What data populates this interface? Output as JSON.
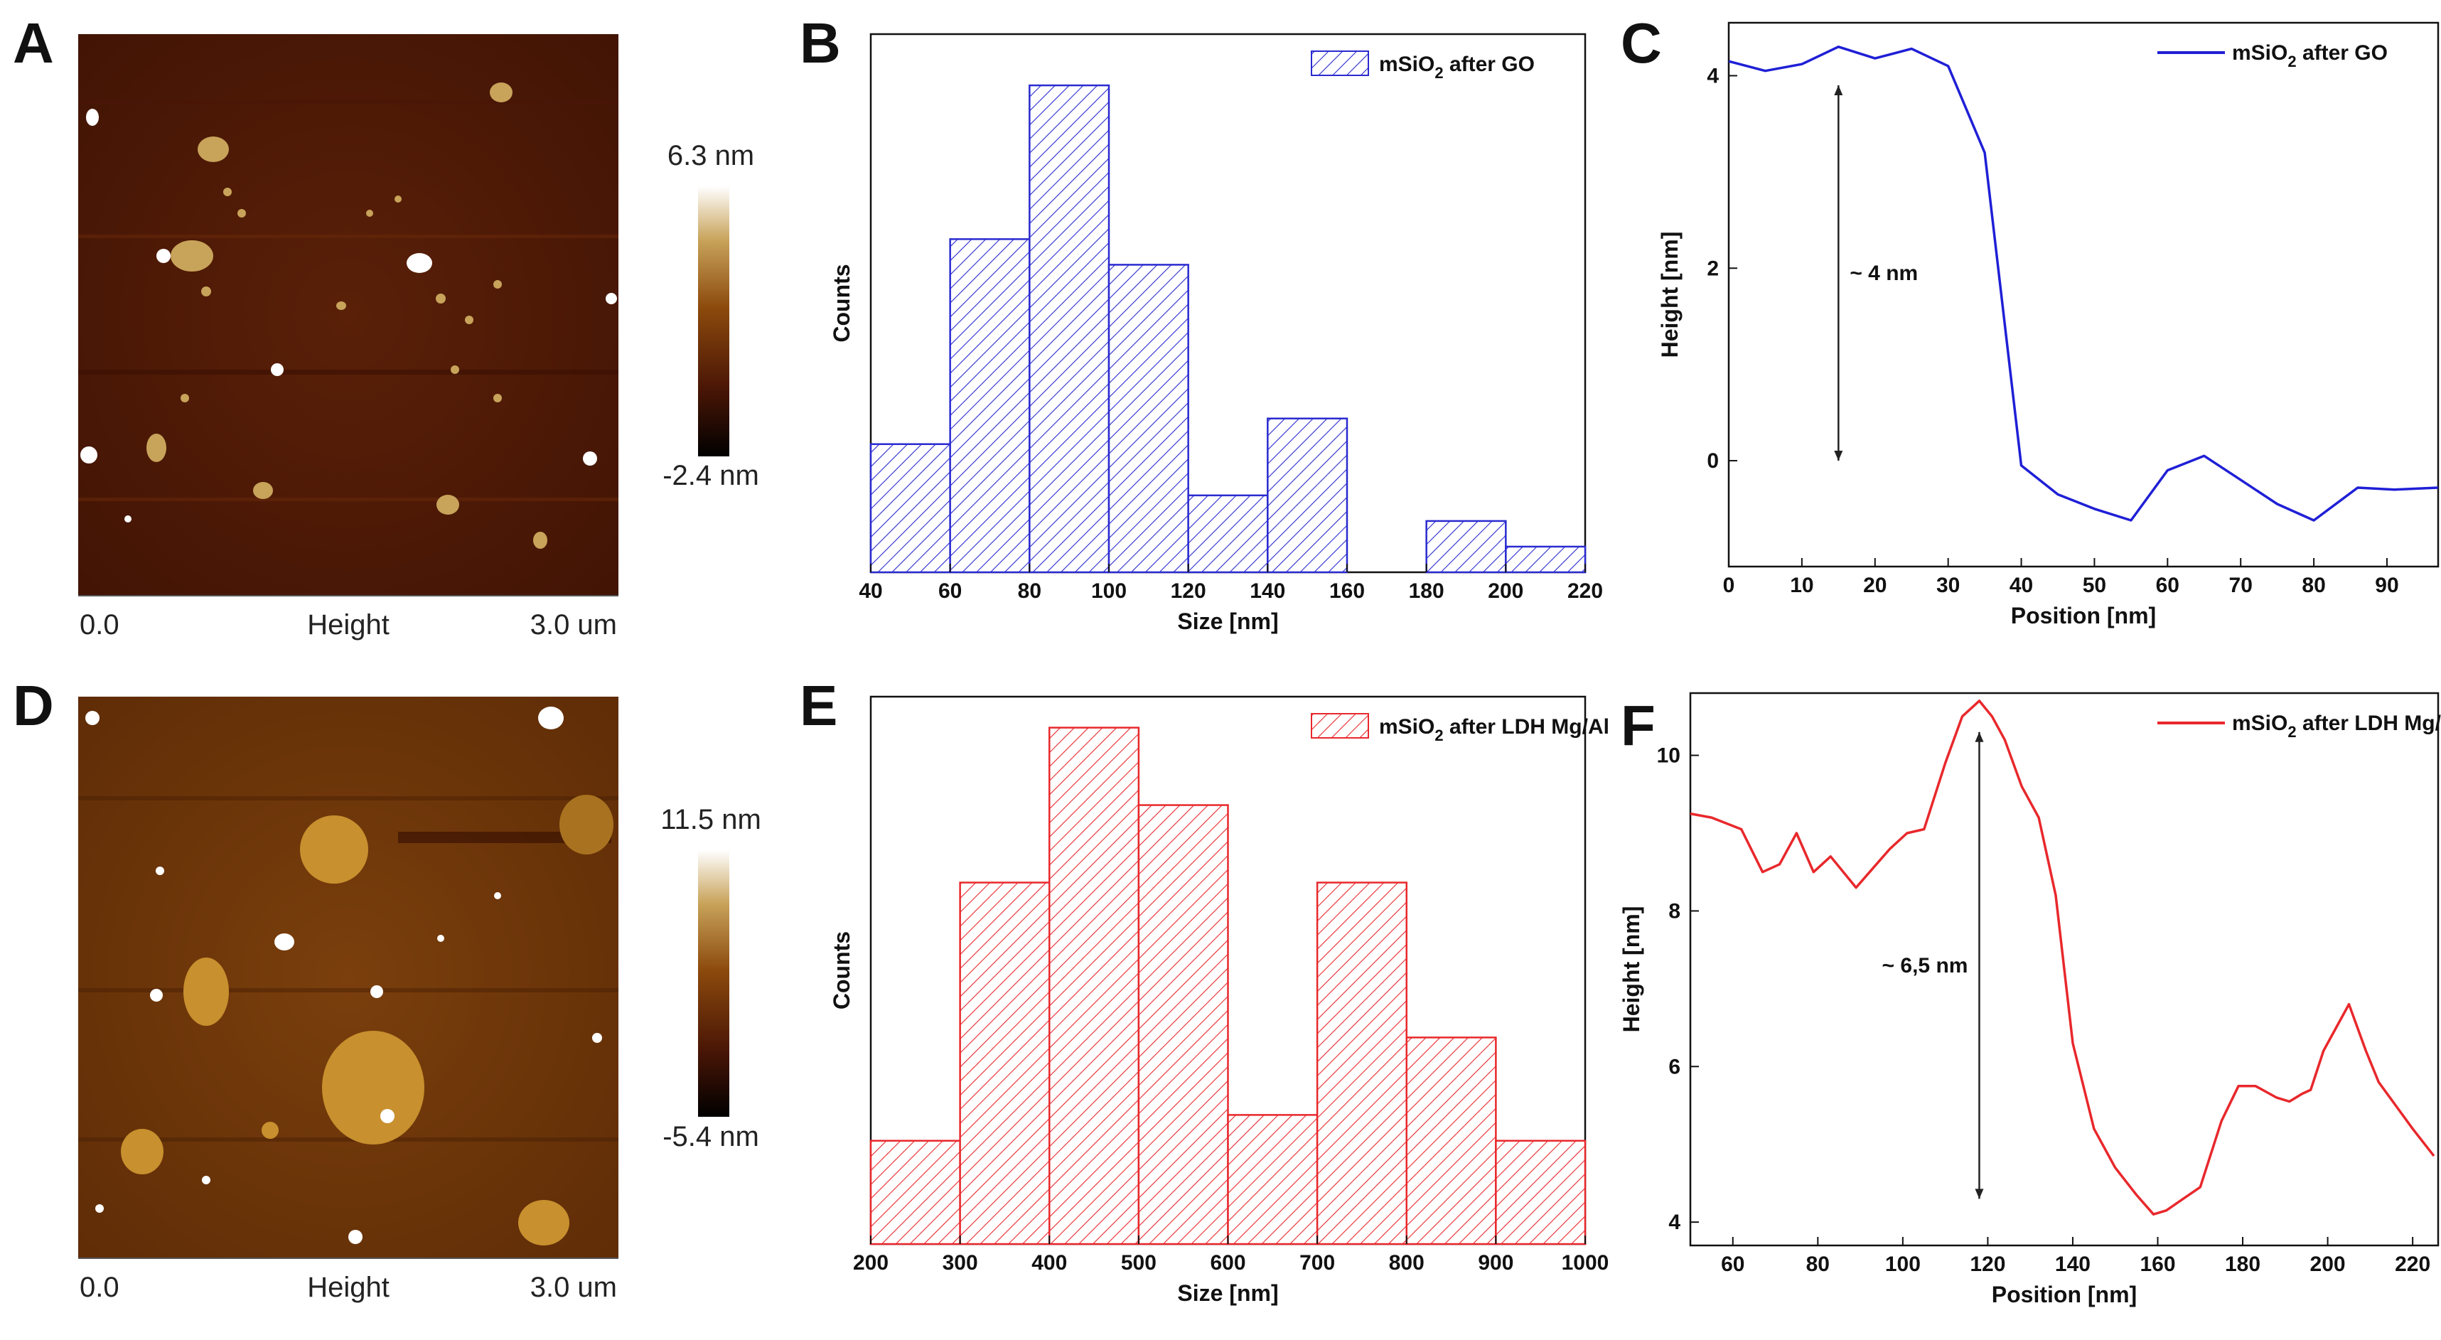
{
  "panels": {
    "A": {
      "letter": "A",
      "afm": {
        "x_start": "0.0",
        "channel": "Height",
        "x_end": "3.0 um",
        "scale_max": "6.3 nm",
        "scale_min": "-2.4 nm"
      }
    },
    "D": {
      "letter": "D",
      "afm": {
        "x_start": "0.0",
        "channel": "Height",
        "x_end": "3.0 um",
        "scale_max": "11.5 nm",
        "scale_min": "-5.4 nm"
      }
    }
  },
  "colors": {
    "blue": "#1f1fd6",
    "red": "#e8282c"
  },
  "chart_data": [
    {
      "panel": "B",
      "type": "bar",
      "subtype": "histogram",
      "bin_edges": [
        40,
        60,
        80,
        100,
        120,
        140,
        160,
        180,
        200,
        220
      ],
      "values": [
        5,
        13,
        19,
        12,
        3,
        6,
        0,
        2,
        1
      ],
      "xlabel": "Size [nm]",
      "ylabel": "Counts",
      "xticks": [
        40,
        60,
        80,
        100,
        120,
        140,
        160,
        180,
        200,
        220
      ],
      "xlim": [
        40,
        220
      ],
      "ylim": [
        0,
        21
      ],
      "legend": {
        "text": "mSiO",
        "sub": "2",
        "suffix": " after GO",
        "placement": "top-right"
      },
      "color": "#2a2ad0",
      "hatch": "diagonal"
    },
    {
      "panel": "C",
      "type": "line",
      "x": [
        0,
        5,
        10,
        15,
        20,
        25,
        30,
        35,
        40,
        45,
        50,
        55,
        60,
        65,
        70,
        75,
        80,
        86,
        91,
        97
      ],
      "y": [
        4.15,
        4.05,
        4.12,
        4.3,
        4.18,
        4.28,
        4.1,
        3.2,
        -0.05,
        -0.35,
        -0.5,
        -0.62,
        -0.1,
        0.05,
        -0.2,
        -0.45,
        -0.62,
        -0.28,
        -0.3,
        -0.28
      ],
      "xlabel": "Position [nm]",
      "ylabel": "Height [nm]",
      "xticks": [
        0,
        10,
        20,
        30,
        40,
        50,
        60,
        70,
        80,
        90
      ],
      "yticks": [
        0,
        2,
        4
      ],
      "xlim": [
        0,
        97
      ],
      "ylim": [
        -1.1,
        4.55
      ],
      "legend": {
        "text": "mSiO",
        "sub": "2",
        "suffix": " after GO",
        "placement": "top-right"
      },
      "color": "#1f1fd6",
      "annotation": {
        "text": "~ 4 nm",
        "x": 15,
        "y_from": 0,
        "y_to": 3.9
      }
    },
    {
      "panel": "E",
      "type": "bar",
      "subtype": "histogram",
      "bin_edges": [
        200,
        300,
        400,
        500,
        600,
        700,
        800,
        900,
        1000
      ],
      "values": [
        2,
        7,
        10,
        8.5,
        2.5,
        7,
        4,
        2
      ],
      "xlabel": "Size [nm]",
      "ylabel": "Counts",
      "xticks": [
        200,
        300,
        400,
        500,
        600,
        700,
        800,
        900,
        1000
      ],
      "xlim": [
        200,
        1000
      ],
      "ylim": [
        0,
        10.6
      ],
      "legend": {
        "text": "mSiO",
        "sub": "2",
        "suffix": " after LDH Mg/Al",
        "placement": "top-right"
      },
      "color": "#e8282c",
      "hatch": "diagonal"
    },
    {
      "panel": "F",
      "type": "line",
      "x": [
        50,
        55,
        62,
        67,
        71,
        75,
        79,
        83,
        89,
        93,
        97,
        101,
        105,
        110,
        114,
        118,
        121,
        124,
        128,
        132,
        136,
        140,
        145,
        150,
        155,
        159,
        162,
        166,
        170,
        175,
        179,
        183,
        188,
        191,
        194,
        196,
        199,
        202,
        205,
        209,
        212,
        216,
        220,
        225
      ],
      "y": [
        9.25,
        9.2,
        9.05,
        8.5,
        8.6,
        9.0,
        8.5,
        8.7,
        8.3,
        8.55,
        8.8,
        9.0,
        9.05,
        9.9,
        10.5,
        10.7,
        10.5,
        10.2,
        9.6,
        9.2,
        8.2,
        6.3,
        5.2,
        4.7,
        4.35,
        4.1,
        4.15,
        4.3,
        4.45,
        5.3,
        5.75,
        5.75,
        5.6,
        5.55,
        5.65,
        5.7,
        6.2,
        6.5,
        6.8,
        6.2,
        5.8,
        5.5,
        5.2,
        4.85
      ],
      "xlabel": "Position [nm]",
      "ylabel": "Height [nm]",
      "xticks": [
        60,
        80,
        100,
        120,
        140,
        160,
        180,
        200,
        220
      ],
      "yticks": [
        4,
        6,
        8,
        10
      ],
      "xlim": [
        50,
        226
      ],
      "ylim": [
        3.7,
        10.8
      ],
      "legend": {
        "text": "mSiO",
        "sub": "2",
        "suffix": " after LDH Mg/Al",
        "placement": "top-right"
      },
      "color": "#e8282c",
      "annotation": {
        "text": "~ 6,5 nm",
        "x": 118,
        "y_from": 4.3,
        "y_to": 10.3
      }
    }
  ]
}
